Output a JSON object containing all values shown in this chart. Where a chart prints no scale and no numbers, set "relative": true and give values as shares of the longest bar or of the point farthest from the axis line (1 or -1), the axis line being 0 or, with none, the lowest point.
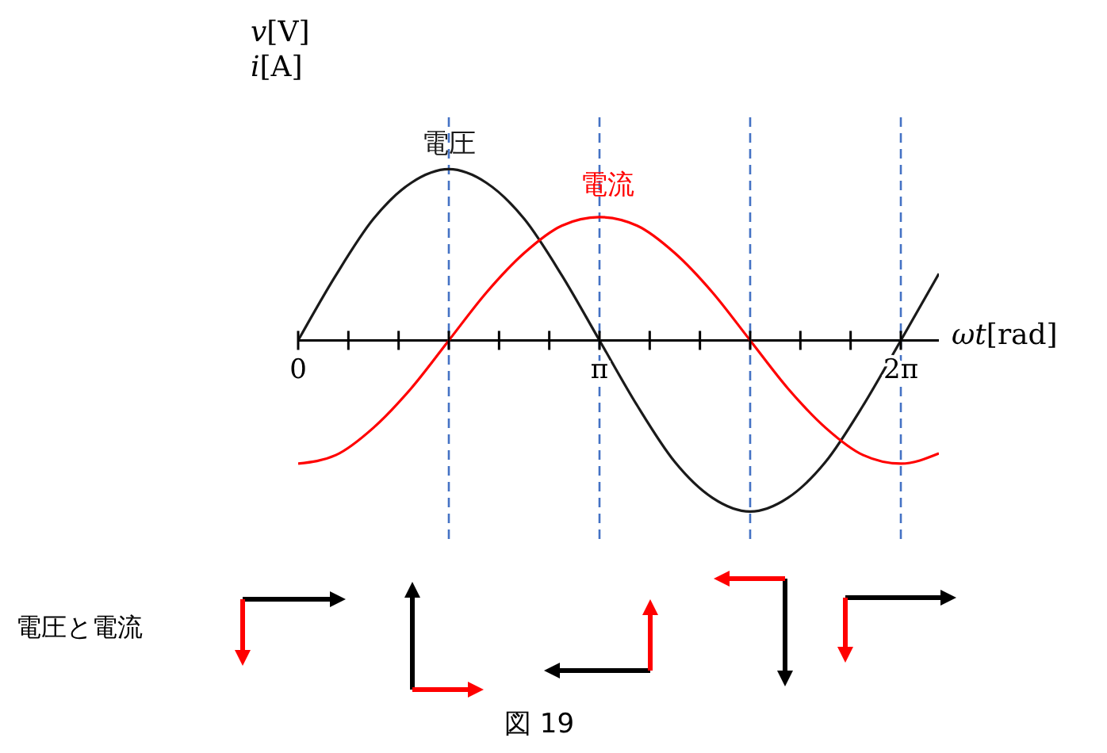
{
  "chart_data": {
    "type": "line",
    "relative": true,
    "ylabel": "v[V]\ni[A]",
    "xlabel": "ωt[rad]",
    "x": [
      0,
      0.3927,
      0.7854,
      1.1781,
      1.5708,
      1.9635,
      2.3562,
      2.7489,
      3.1416,
      3.5343,
      3.927,
      4.3197,
      4.7124,
      5.1051,
      5.4978,
      5.8905,
      6.2832,
      6.68
    ],
    "xlim": [
      0,
      6.68
    ],
    "xticks": [
      0,
      {
        "value": 0.5236,
        "label": null
      },
      {
        "value": 1.0472,
        "label": null
      },
      {
        "value": 1.5708,
        "label": null
      },
      {
        "value": 2.0944,
        "label": null
      },
      {
        "value": 2.618,
        "label": null
      },
      {
        "value": 3.1416,
        "label": "π"
      },
      {
        "value": 3.6652,
        "label": null
      },
      {
        "value": 4.1888,
        "label": null
      },
      {
        "value": 4.7124,
        "label": null
      },
      {
        "value": 5.236,
        "label": null
      },
      {
        "value": 5.7596,
        "label": null
      },
      {
        "value": 6.2832,
        "label": "2π"
      }
    ],
    "series": [
      {
        "name": "電圧",
        "color": "#1a1a1a",
        "values": [
          0,
          0.38,
          0.71,
          0.92,
          1,
          0.92,
          0.71,
          0.38,
          0,
          -0.38,
          -0.71,
          -0.92,
          -1,
          -0.92,
          -0.71,
          -0.38,
          0,
          0.39
        ]
      },
      {
        "name": "電流",
        "color": "#ff0000",
        "values": [
          -0.72,
          -0.67,
          -0.51,
          -0.28,
          0,
          0.28,
          0.51,
          0.67,
          0.72,
          0.67,
          0.51,
          0.28,
          0,
          -0.28,
          -0.51,
          -0.67,
          -0.72,
          -0.66
        ]
      }
    ],
    "ref_lines": [
      {
        "axis": "x",
        "value": 1.5708,
        "color": "#4472c4",
        "line_style": "dashed"
      },
      {
        "axis": "x",
        "value": 3.1416,
        "color": "#4472c4",
        "line_style": "dashed"
      },
      {
        "axis": "x",
        "value": 4.7124,
        "color": "#4472c4",
        "line_style": "dashed"
      },
      {
        "axis": "x",
        "value": 6.2832,
        "color": "#4472c4",
        "line_style": "dashed"
      }
    ],
    "annotations": [
      "電圧と電流",
      "図 19"
    ],
    "grid": false,
    "legend": false,
    "marker": "none",
    "line_style": "solid"
  }
}
